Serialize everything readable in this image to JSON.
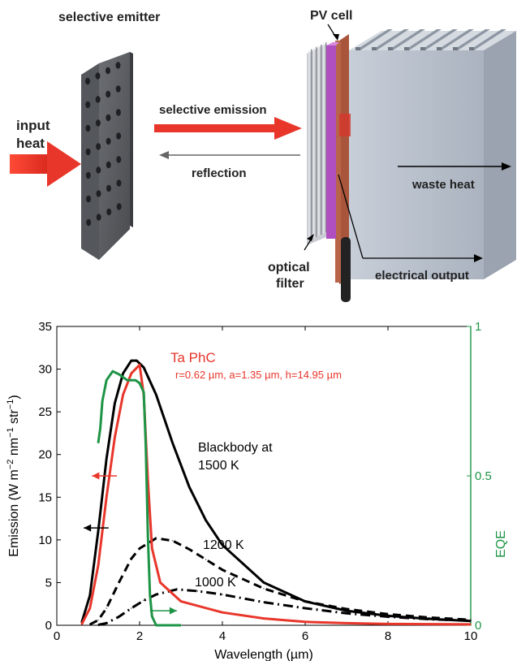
{
  "diagram": {
    "labels": {
      "selective_emitter": "selective emitter",
      "pv_cell": "PV cell",
      "input_heat": [
        "input",
        "heat"
      ],
      "selective_emission": "selective emission",
      "reflection": "reflection",
      "waste_heat": "waste heat",
      "optical_filter": [
        "optical",
        "filter"
      ],
      "electrical_output": "electrical output"
    },
    "colors": {
      "heat_arrow": "#e8362b",
      "filter_purple": "#b04fc0",
      "metal_gray": "#5a5d62",
      "pv_copper": "#a8553b",
      "heatsink": "#b9c1cc"
    }
  },
  "chart_data": {
    "type": "line",
    "xlabel": "Wavelength (µm)",
    "ylabel_left": "Emission (W m^-2 nm^-1 str^-1)",
    "ylabel_right": "EQE",
    "xlim": [
      0,
      10
    ],
    "ylim_left": [
      0,
      35
    ],
    "ylim_right": [
      0,
      1
    ],
    "x_ticks": [
      "0",
      "2",
      "4",
      "6",
      "8",
      "10"
    ],
    "y_ticks_left": [
      "0",
      "5",
      "10",
      "15",
      "20",
      "25",
      "30",
      "35"
    ],
    "y_ticks_right": [
      "0",
      "0.5",
      "1"
    ],
    "annotations": {
      "ta_phc_title": "Ta PhC",
      "ta_phc_params": "r=0.62 µm, a=1.35 µm, h=14.95 µm",
      "bb_line1": "Blackbody at",
      "bb_line2": "1500 K",
      "k1200": "1200 K",
      "k1000": "1000 K"
    },
    "series": [
      {
        "name": "1500 K",
        "axis": "left",
        "color": "#000000",
        "dash": "solid",
        "x": [
          0.6,
          0.8,
          1.0,
          1.2,
          1.4,
          1.6,
          1.8,
          1.93,
          2.1,
          2.4,
          2.8,
          3.2,
          3.6,
          4.0,
          5.0,
          6.0,
          7.0,
          8.0,
          9.0,
          10.0
        ],
        "y": [
          0.3,
          3.5,
          11.0,
          19.5,
          26.0,
          29.5,
          31.0,
          31.0,
          30.2,
          27.0,
          21.3,
          16.2,
          12.3,
          9.4,
          5.0,
          2.8,
          1.7,
          1.1,
          0.75,
          0.5
        ]
      },
      {
        "name": "1200 K",
        "axis": "left",
        "color": "#000000",
        "dash": "dashed",
        "x": [
          0.8,
          1.0,
          1.2,
          1.5,
          1.8,
          2.0,
          2.4,
          2.8,
          3.2,
          3.6,
          4.0,
          5.0,
          6.0,
          7.0,
          8.0,
          9.0,
          10.0
        ],
        "y": [
          0.1,
          0.6,
          2.0,
          5.0,
          7.8,
          9.0,
          10.2,
          9.9,
          8.9,
          7.7,
          6.5,
          4.3,
          2.8,
          1.9,
          1.3,
          0.9,
          0.65
        ]
      },
      {
        "name": "1000 K",
        "axis": "left",
        "color": "#000000",
        "dash": "dashdot",
        "x": [
          1.0,
          1.2,
          1.5,
          1.8,
          2.1,
          2.4,
          2.9,
          3.4,
          4.0,
          5.0,
          6.0,
          7.0,
          8.0,
          9.0,
          10.0
        ],
        "y": [
          0.05,
          0.25,
          1.0,
          2.0,
          2.9,
          3.6,
          4.2,
          4.0,
          3.6,
          2.7,
          2.0,
          1.4,
          1.0,
          0.7,
          0.55
        ]
      },
      {
        "name": "Ta PhC",
        "axis": "left",
        "color": "#e8362b",
        "dash": "solid",
        "x": [
          0.6,
          0.8,
          1.0,
          1.2,
          1.4,
          1.6,
          1.8,
          2.0,
          2.1,
          2.2,
          2.3,
          2.5,
          3.0,
          4.0,
          5.0,
          6.0,
          7.0,
          8.0,
          10.0
        ],
        "y": [
          0.1,
          2.0,
          7.0,
          15.0,
          22.0,
          27.0,
          29.5,
          30.5,
          27.0,
          17.0,
          9.0,
          5.0,
          2.8,
          1.5,
          0.8,
          0.4,
          0.25,
          0.15,
          0.1
        ]
      },
      {
        "name": "EQE",
        "axis": "right",
        "color": "#1e9446",
        "dash": "solid",
        "x": [
          1.0,
          1.05,
          1.1,
          1.2,
          1.35,
          1.5,
          1.7,
          1.9,
          2.0,
          2.1,
          2.15,
          2.2,
          2.25,
          2.3,
          2.4,
          2.6,
          3.0
        ],
        "y": [
          0.61,
          0.66,
          0.75,
          0.82,
          0.85,
          0.84,
          0.82,
          0.82,
          0.81,
          0.78,
          0.6,
          0.3,
          0.1,
          0.03,
          0.0,
          0.0,
          0.0
        ]
      }
    ],
    "arrows": [
      {
        "name": "red-left-arrow",
        "color": "#e8362b",
        "x_from": 1.45,
        "x_to": 0.85,
        "y": 17.5
      },
      {
        "name": "black-left-arrow",
        "color": "#000000",
        "x_from": 1.25,
        "x_to": 0.65,
        "y": 11.4
      },
      {
        "name": "green-right-arrow",
        "color": "#1e9446",
        "x_from": 2.25,
        "x_to": 2.9,
        "y": 1.7
      }
    ]
  }
}
